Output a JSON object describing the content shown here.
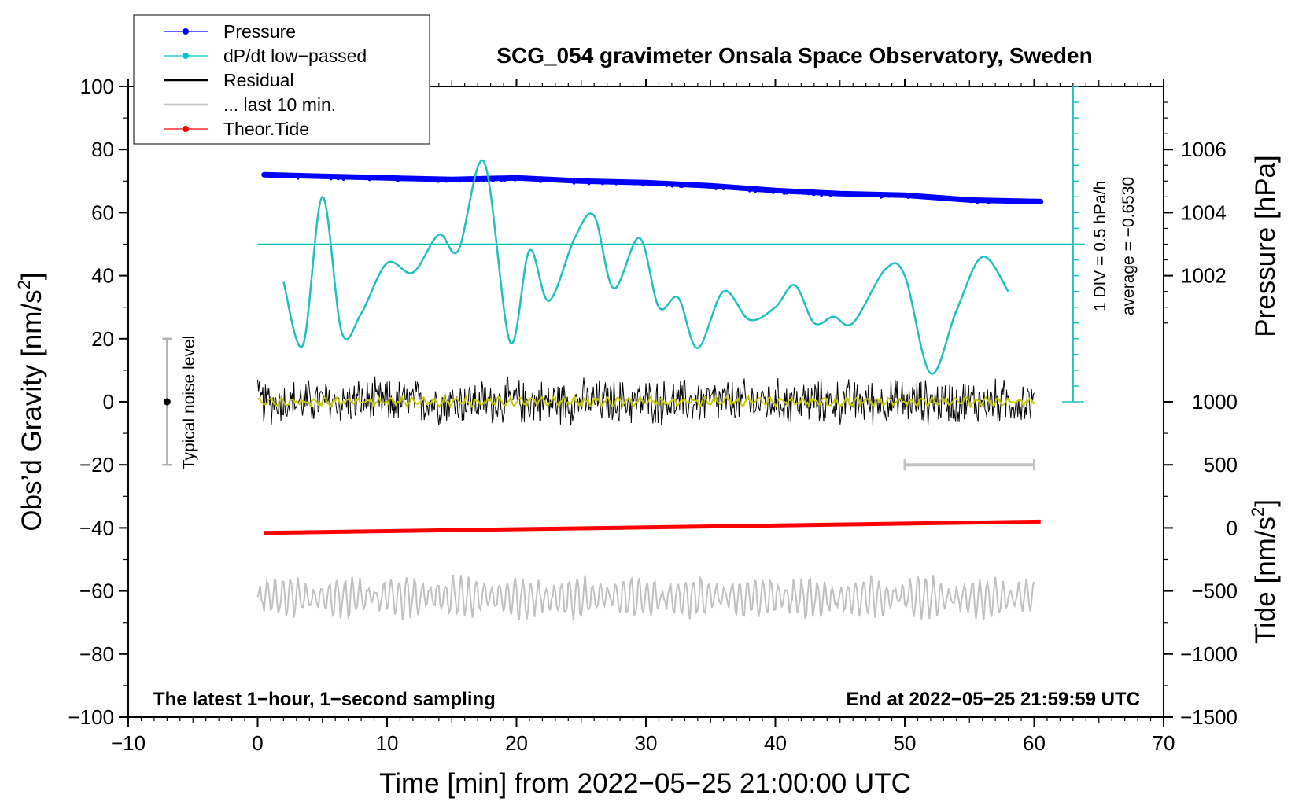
{
  "chart_data": {
    "type": "line",
    "title": "SCG_054 gravimeter Onsala Space Observatory, Sweden",
    "xlabel": "Time [min] from 2022−05−25 21:00:00 UTC",
    "xlim": [
      -10,
      70
    ],
    "x_ticks": [
      -10,
      0,
      10,
      20,
      30,
      40,
      50,
      60,
      70
    ],
    "x_tick_labels": [
      "−10",
      "0",
      "10",
      "20",
      "30",
      "40",
      "50",
      "60",
      "70"
    ],
    "left_axis": {
      "label_main": "Obs’d Gravity [nm/s",
      "label_sup": "2",
      "label_end": "]",
      "range": [
        -100,
        100
      ],
      "ticks": [
        -100,
        -80,
        -60,
        -40,
        -20,
        0,
        20,
        40,
        60,
        80,
        100
      ],
      "tick_labels": [
        "−100",
        "−80",
        "−60",
        "−40",
        "−20",
        "0",
        "20",
        "40",
        "60",
        "80",
        "100"
      ]
    },
    "pressure_axis": {
      "label": "Pressure [hPa]",
      "range_hpa": [
        1000,
        1008
      ],
      "ticks": [
        1002,
        1004,
        1006
      ],
      "tick_labels": [
        "1002",
        "1004",
        "1006"
      ]
    },
    "tide_axis": {
      "label_main": "Tide [nm/s",
      "label_sup": "2",
      "label_end": "]",
      "range": [
        -1500,
        1000
      ],
      "ticks": [
        -1500,
        -1000,
        -500,
        0,
        500,
        1000
      ],
      "tick_labels": [
        "−1500",
        "−1000",
        "−500",
        "0",
        "500",
        "1000"
      ]
    },
    "legend": {
      "placement": "top-left",
      "entries": [
        {
          "label": "Pressure",
          "color": "#0000ff",
          "marker": "dot"
        },
        {
          "label": "dP/dt low−passed",
          "color": "#00c8c8",
          "marker": "dot"
        },
        {
          "label": "Residual",
          "color": "#000000",
          "marker": "line"
        },
        {
          "label": "... last 10 min.",
          "color": "#c0c0c0",
          "marker": "line"
        },
        {
          "label": "Theor.Tide",
          "color": "#ff0000",
          "marker": "dot"
        }
      ]
    },
    "series": [
      {
        "name": "Pressure",
        "color": "#0000ff",
        "units": "hPa",
        "axis": "pressure",
        "x": [
          0.5,
          5,
          10,
          15,
          20,
          25,
          30,
          35,
          40,
          45,
          50,
          55,
          60.5
        ],
        "values": [
          1005.2,
          1005.15,
          1005.1,
          1005.05,
          1005.1,
          1005.0,
          1004.95,
          1004.85,
          1004.7,
          1004.6,
          1004.55,
          1004.4,
          1004.35
        ]
      },
      {
        "name": "dP/dt low-passed",
        "color": "#00c8c8",
        "units": "gravity-axis units (1 DIV = 0.5 hPa/h)",
        "axis": "gravity",
        "x": [
          2,
          3.5,
          5,
          6.5,
          8,
          10,
          12,
          14,
          15.5,
          17.5,
          19.5,
          21,
          22.5,
          24.5,
          26,
          27.5,
          29.5,
          31,
          32.5,
          34,
          36,
          38,
          40,
          41.5,
          43,
          44.5,
          46,
          48.5,
          50,
          52,
          54,
          56,
          58
        ],
        "values": [
          38,
          18,
          65,
          22,
          28,
          44,
          41,
          53,
          48,
          76,
          19,
          48,
          32,
          52,
          59,
          36,
          52,
          30,
          33,
          17,
          35,
          26,
          30,
          37,
          25,
          27,
          25,
          42,
          40,
          9,
          29,
          46,
          35
        ]
      },
      {
        "name": "Residual",
        "color": "#000000",
        "axis": "gravity",
        "x_range": [
          0,
          60
        ],
        "mean": 0,
        "amplitude": 7
      },
      {
        "name": "Residual smoothed",
        "color": "#c8c800",
        "axis": "gravity",
        "x_range": [
          0,
          60
        ],
        "mean": 0,
        "amplitude": 1.5
      },
      {
        "name": "... last 10 min.",
        "color": "#c0c0c0",
        "axis": "gravity",
        "x_range": [
          0,
          60
        ],
        "mean": -62,
        "amplitude": 6,
        "period_bar_x": [
          50,
          60
        ]
      },
      {
        "name": "Theor.Tide",
        "color": "#ff0000",
        "units": "nm/s²",
        "axis": "tide",
        "x": [
          0.5,
          60.5
        ],
        "values": [
          -40,
          50
        ]
      }
    ],
    "dpdt_reference": {
      "average_line_value": 50,
      "scale_text": "1 DIV = 0.5 hPa/h",
      "average_text": "average = −0.6530",
      "scale_x": 63,
      "scale_range": [
        0,
        100
      ],
      "scale_step": 5
    },
    "noise_bar": {
      "x": -7,
      "center": 0,
      "low": -20,
      "high": 20,
      "label": "Typical noise level"
    },
    "annotations": {
      "bottom_left": "The latest 1−hour, 1−second sampling",
      "bottom_right": "End at 2022−05−25 21:59:59 UTC"
    }
  }
}
